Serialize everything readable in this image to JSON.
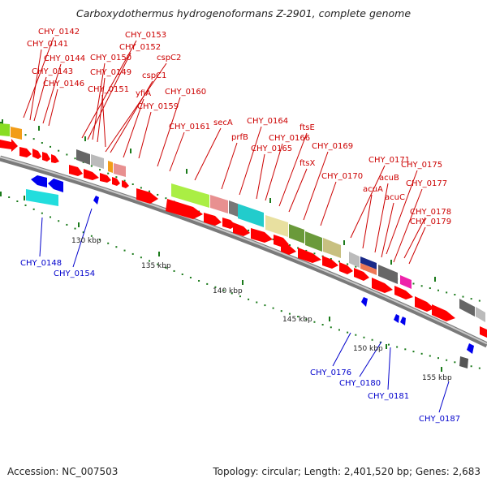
{
  "title": "Carboxydothermus hydrogenoformans Z-2901, complete genome",
  "footer": {
    "accession": "Accession: NC_007503",
    "stats": "Topology: circular; Length: 2,401,520 bp; Genes: 2,683"
  },
  "colors": {
    "forward_label": "#cc0000",
    "reverse_label": "#0000cc",
    "forward_arrow": "#ff0000",
    "reverse_arrow": "#0000ee",
    "ruler_tick": "#1a7a1a",
    "backbone": "#7a7a7a"
  },
  "ruler_labels": [
    "130 kbp",
    "135 kbp",
    "140 kbp",
    "145 kbp",
    "150 kbp",
    "155 kbp"
  ],
  "forward_gene_labels": [
    "CHY_0142",
    "CHY_0141",
    "CHY_0144",
    "CHY_0143",
    "CHY_0146",
    "CHY_0153",
    "CHY_0152",
    "CHY_0150",
    "CHY_0149",
    "CHY_0151",
    "cspC2",
    "cspC1",
    "yfiA",
    "CHY_0159",
    "CHY_0160",
    "CHY_0161",
    "secA",
    "prfB",
    "CHY_0164",
    "CHY_0165",
    "CHY_0166",
    "ftsE",
    "ftsX",
    "CHY_0169",
    "CHY_0170",
    "CHY_0171",
    "acuA",
    "acuB",
    "acuC",
    "CHY_0175",
    "CHY_0177",
    "CHY_0178",
    "CHY_0179"
  ],
  "reverse_gene_labels": [
    "CHY_0148",
    "CHY_0154",
    "CHY_0176",
    "CHY_0180",
    "CHY_0181",
    "CHY_0187"
  ]
}
